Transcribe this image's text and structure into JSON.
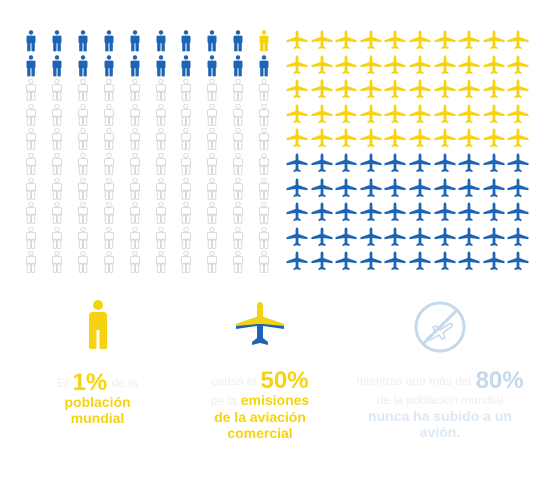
{
  "colors": {
    "blue": "#1e64b4",
    "yellow": "#f5d40f",
    "outline": "#d6d6d6",
    "pale_text": "#eeeeee",
    "pale_blue": "#c5d8ec",
    "pale_blue_text": "#dde8f4"
  },
  "people_chart": {
    "rows": 10,
    "cols": 10,
    "highlight_rows": 2,
    "yellow_cell": 9
  },
  "planes_chart": {
    "rows": 10,
    "cols": 10,
    "yellow_rows": 5
  },
  "legend": {
    "people": {
      "icon": "person-icon",
      "lead": "El",
      "percent": "1%",
      "after": "de la",
      "line2": "población",
      "line3": "mundial"
    },
    "emissions": {
      "icon": "airplane-icon",
      "lead": "causa el",
      "percent": "50%",
      "line2a": "de la",
      "line2b": "emisiones",
      "line3": "de la aviación",
      "line4": "comercial"
    },
    "never_flown": {
      "icon": "no-flight-icon",
      "lead": "mientras que más del",
      "percent": "80%",
      "line2": "de la población mundial",
      "line3": "nunca ha subido a un",
      "line4": "avión."
    }
  }
}
